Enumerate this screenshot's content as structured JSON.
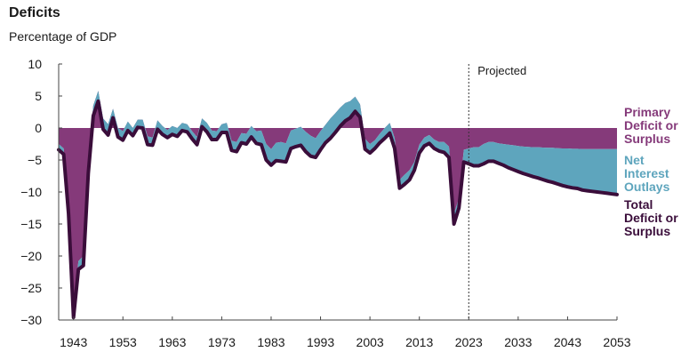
{
  "header": {
    "title": "Deficits",
    "subtitle": "Percentage of GDP"
  },
  "legend": {
    "primary": "Primary\nDeficit or\nSurplus",
    "interest": "Net\nInterest\nOutlays",
    "total": "Total\nDeficit or\nSurplus"
  },
  "colors": {
    "primary": "#853a7a",
    "interest": "#5ea5bd",
    "total": "#3a0d3a",
    "axis": "#444444",
    "text": "#1a1a1a"
  },
  "chart_data": {
    "type": "area",
    "title": "Deficits",
    "subtitle": "Percentage of GDP",
    "xlabel": "",
    "ylabel": "Percentage of GDP",
    "xlim": [
      1940,
      2053
    ],
    "ylim": [
      -30,
      10
    ],
    "y_ticks": [
      10,
      5,
      0,
      -5,
      -10,
      -15,
      -20,
      -25,
      -30
    ],
    "x_ticks": [
      1943,
      1953,
      1963,
      1973,
      1983,
      1993,
      2003,
      2013,
      2023,
      2033,
      2043,
      2053
    ],
    "projected_start": 2023,
    "projected_label": "Projected",
    "grid": false,
    "legend_position": "right",
    "x": [
      1940,
      1941,
      1942,
      1943,
      1944,
      1945,
      1946,
      1947,
      1948,
      1949,
      1950,
      1951,
      1952,
      1953,
      1954,
      1955,
      1956,
      1957,
      1958,
      1959,
      1960,
      1961,
      1962,
      1963,
      1964,
      1965,
      1966,
      1967,
      1968,
      1969,
      1970,
      1971,
      1972,
      1973,
      1974,
      1975,
      1976,
      1977,
      1978,
      1979,
      1980,
      1981,
      1982,
      1983,
      1984,
      1985,
      1986,
      1987,
      1988,
      1989,
      1990,
      1991,
      1992,
      1993,
      1994,
      1995,
      1996,
      1997,
      1998,
      1999,
      2000,
      2001,
      2002,
      2003,
      2004,
      2005,
      2006,
      2007,
      2008,
      2009,
      2010,
      2011,
      2012,
      2013,
      2014,
      2015,
      2016,
      2017,
      2018,
      2019,
      2020,
      2021,
      2022,
      2023,
      2024,
      2025,
      2026,
      2027,
      2028,
      2029,
      2030,
      2031,
      2032,
      2033,
      2034,
      2035,
      2036,
      2037,
      2038,
      2039,
      2040,
      2041,
      2042,
      2043,
      2044,
      2045,
      2046,
      2047,
      2048,
      2049,
      2050,
      2051,
      2052,
      2053
    ],
    "series": [
      {
        "name": "Primary Deficit or Surplus",
        "values": [
          -2.5,
          -3.2,
          -12.5,
          -28.5,
          -20.8,
          -20.0,
          -5.5,
          3.5,
          5.8,
          1.5,
          0.6,
          3.0,
          0.0,
          -0.5,
          1.0,
          0.0,
          1.3,
          1.3,
          -1.3,
          -1.5,
          1.2,
          0.3,
          -0.3,
          0.3,
          0.0,
          0.8,
          0.6,
          -0.5,
          -1.4,
          1.5,
          0.8,
          -0.4,
          -0.5,
          0.6,
          0.8,
          -2.0,
          -2.2,
          -0.8,
          -0.9,
          0.3,
          -0.5,
          -0.4,
          -2.5,
          -3.3,
          -2.3,
          -2.2,
          -2.4,
          -0.4,
          -0.1,
          0.2,
          -0.6,
          -1.2,
          -1.6,
          -0.5,
          0.5,
          1.5,
          2.3,
          3.2,
          3.9,
          4.2,
          4.9,
          3.7,
          -1.7,
          -2.5,
          -1.9,
          -0.9,
          0.0,
          0.8,
          -1.6,
          -8.1,
          -7.3,
          -6.6,
          -5.3,
          -2.6,
          -1.5,
          -1.1,
          -1.8,
          -2.2,
          -2.2,
          -2.9,
          -13.4,
          -11.0,
          -3.4,
          -3.2,
          -3.0,
          -3.0,
          -2.5,
          -2.2,
          -2.2,
          -2.4,
          -2.5,
          -2.6,
          -2.7,
          -2.8,
          -2.9,
          -2.95,
          -3.0,
          -3.0,
          -3.05,
          -3.1,
          -3.1,
          -3.15,
          -3.2,
          -3.2,
          -3.25,
          -3.25,
          -3.3,
          -3.3,
          -3.3,
          -3.3,
          -3.3,
          -3.3,
          -3.3,
          -3.3
        ]
      },
      {
        "name": "Net Interest Outlays",
        "values": [
          0.9,
          0.9,
          0.9,
          1.1,
          1.3,
          1.5,
          1.6,
          1.6,
          1.6,
          1.7,
          1.7,
          1.4,
          1.4,
          1.4,
          1.4,
          1.2,
          1.2,
          1.3,
          1.3,
          1.2,
          1.4,
          1.3,
          1.2,
          1.3,
          1.3,
          1.2,
          1.2,
          1.2,
          1.2,
          1.3,
          1.4,
          1.4,
          1.3,
          1.3,
          1.5,
          1.5,
          1.5,
          1.5,
          1.6,
          1.7,
          1.9,
          2.2,
          2.5,
          2.5,
          2.8,
          3.0,
          2.9,
          2.8,
          2.8,
          2.9,
          3.1,
          3.2,
          3.0,
          2.9,
          2.8,
          3.1,
          3.0,
          2.9,
          2.8,
          2.6,
          2.3,
          2.0,
          1.6,
          1.4,
          1.3,
          1.4,
          1.6,
          1.6,
          1.6,
          1.3,
          1.5,
          1.5,
          1.3,
          1.3,
          1.3,
          1.3,
          1.4,
          1.4,
          1.6,
          1.7,
          1.6,
          1.5,
          1.9,
          2.4,
          2.9,
          2.9,
          3.1,
          3.0,
          3.0,
          3.1,
          3.3,
          3.6,
          3.8,
          4.0,
          4.2,
          4.4,
          4.6,
          4.8,
          5.0,
          5.2,
          5.4,
          5.6,
          5.8,
          6.0,
          6.1,
          6.2,
          6.4,
          6.5,
          6.6,
          6.7,
          6.8,
          6.9,
          7.0,
          7.1
        ]
      },
      {
        "name": "Total Deficit or Surplus",
        "values": [
          -3.4,
          -4.1,
          -13.4,
          -29.6,
          -22.1,
          -21.5,
          -7.1,
          1.9,
          4.2,
          -0.2,
          -1.1,
          1.6,
          -1.4,
          -1.9,
          -0.4,
          -1.2,
          0.1,
          0.0,
          -2.6,
          -2.7,
          -0.2,
          -1.0,
          -1.5,
          -1.0,
          -1.3,
          -0.4,
          -0.6,
          -1.7,
          -2.6,
          0.2,
          -0.6,
          -1.8,
          -1.8,
          -0.7,
          -0.7,
          -3.5,
          -3.7,
          -2.3,
          -2.5,
          -1.4,
          -2.4,
          -2.6,
          -5.0,
          -5.8,
          -5.1,
          -5.2,
          -5.3,
          -3.2,
          -2.9,
          -2.7,
          -3.7,
          -4.4,
          -4.6,
          -3.4,
          -2.3,
          -1.6,
          -0.7,
          0.3,
          1.1,
          1.6,
          2.6,
          1.7,
          -3.3,
          -3.9,
          -3.2,
          -2.3,
          -1.6,
          -0.8,
          -3.2,
          -9.4,
          -8.8,
          -8.1,
          -6.6,
          -3.9,
          -2.8,
          -2.4,
          -3.2,
          -3.6,
          -3.8,
          -4.6,
          -15.0,
          -12.5,
          -5.3,
          -5.6,
          -5.9,
          -5.9,
          -5.6,
          -5.2,
          -5.2,
          -5.5,
          -5.8,
          -6.2,
          -6.5,
          -6.8,
          -7.1,
          -7.35,
          -7.6,
          -7.8,
          -8.05,
          -8.3,
          -8.5,
          -8.75,
          -9.0,
          -9.2,
          -9.35,
          -9.45,
          -9.7,
          -9.8,
          -9.9,
          -10.0,
          -10.1,
          -10.2,
          -10.3,
          -10.4
        ]
      }
    ]
  }
}
